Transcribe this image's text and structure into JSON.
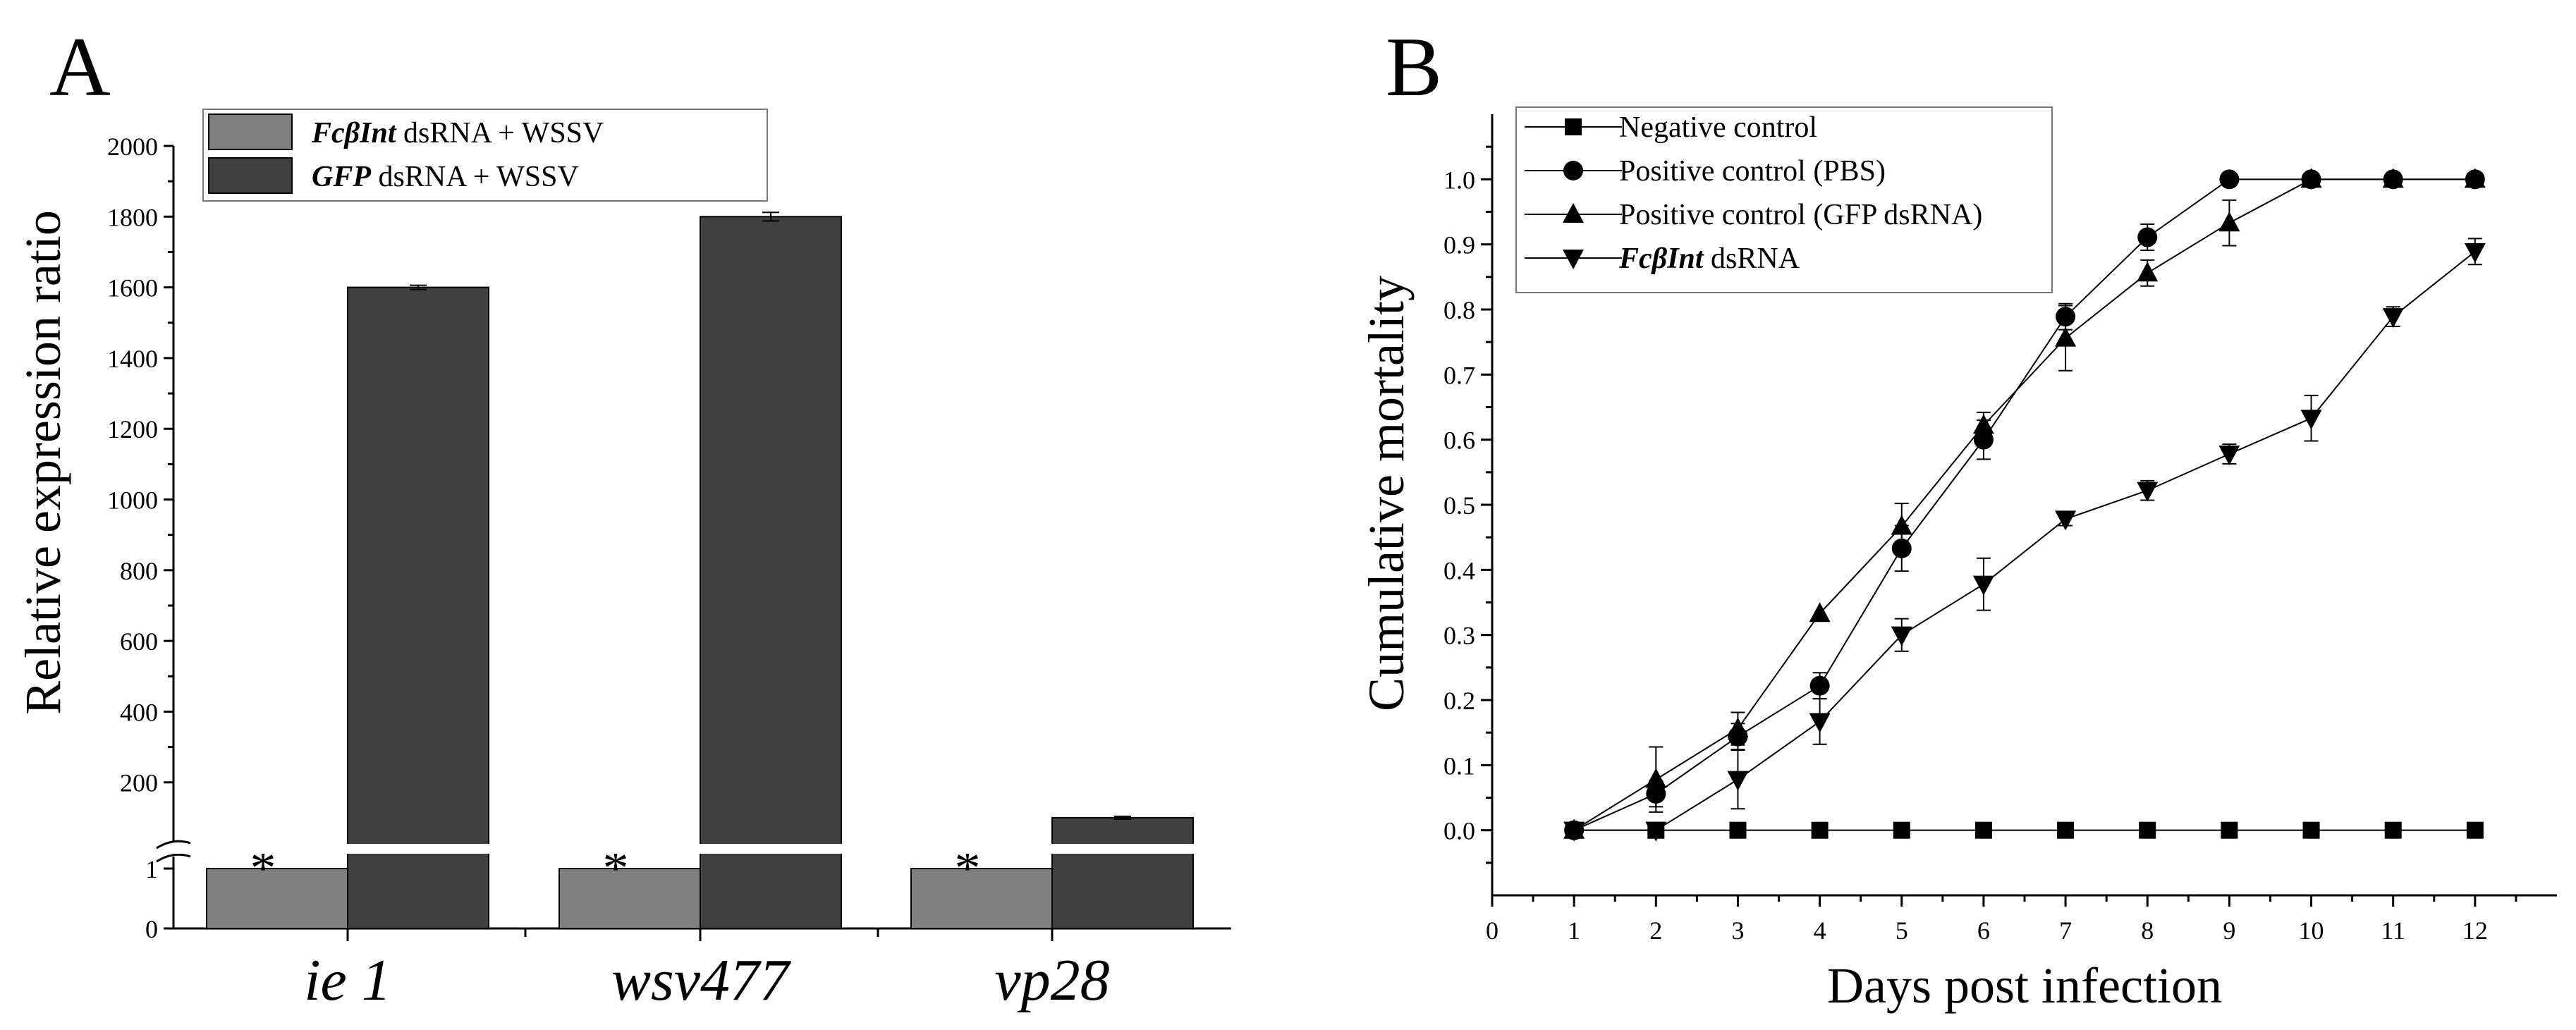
{
  "chart_data": [
    {
      "panel_label": "A",
      "type": "bar",
      "ylabel": "Relative expression ratio",
      "categories": [
        "ie 1",
        "wsv477",
        "vp28"
      ],
      "series": [
        {
          "name_gene": "FcβInt",
          "name_rest": "dsRNA + WSSV",
          "values": [
            1,
            1,
            1
          ],
          "errors": [
            0,
            0,
            0
          ],
          "color": "#808080"
        },
        {
          "name_gene": "GFP",
          "name_rest": "dsRNA + WSSV",
          "values": [
            1600,
            1800,
            100
          ],
          "errors": [
            6,
            12,
            4
          ],
          "color": "#404040"
        }
      ],
      "significance": [
        "*",
        "*",
        "*"
      ],
      "y_lower": {
        "ticks": [
          "0",
          "1"
        ],
        "range": [
          0,
          1.2
        ]
      },
      "y_upper": {
        "ticks": [
          "200",
          "400",
          "600",
          "800",
          "1000",
          "1200",
          "1400",
          "1600",
          "1800",
          "2000"
        ],
        "range": [
          30,
          2000
        ]
      },
      "legend_position": "top-left"
    },
    {
      "panel_label": "B",
      "type": "line",
      "xlabel": "Days post infection",
      "ylabel": "Cumulative mortality",
      "x": [
        1,
        2,
        3,
        4,
        5,
        6,
        7,
        8,
        9,
        10,
        11,
        12
      ],
      "xlim": [
        0,
        13
      ],
      "ylim": [
        -0.1,
        1.1
      ],
      "x_ticks": [
        "0",
        "1",
        "2",
        "3",
        "4",
        "5",
        "6",
        "7",
        "8",
        "9",
        "10",
        "11",
        "12"
      ],
      "y_ticks": [
        "0.0",
        "0.1",
        "0.2",
        "0.3",
        "0.4",
        "0.5",
        "0.6",
        "0.7",
        "0.8",
        "0.9",
        "1.0"
      ],
      "series": [
        {
          "name": "Negative control",
          "marker": "square",
          "values": [
            0,
            0,
            0,
            0,
            0,
            0,
            0,
            0,
            0,
            0,
            0,
            0
          ],
          "errors": [
            0,
            0,
            0,
            0,
            0,
            0,
            0,
            0,
            0,
            0,
            0,
            0
          ]
        },
        {
          "name": "Positive control (PBS)",
          "marker": "circle",
          "values": [
            0,
            0.056,
            0.144,
            0.222,
            0.433,
            0.6,
            0.789,
            0.911,
            1.0,
            1.0,
            1.0,
            1.0
          ],
          "errors": [
            0,
            0.02,
            0.02,
            0.02,
            0.035,
            0.03,
            0.02,
            0.02,
            0,
            0,
            0,
            0
          ]
        },
        {
          "name": "Positive control (GFP dsRNA)",
          "marker": "triangle-up",
          "values": [
            0,
            0.078,
            0.156,
            0.333,
            0.467,
            0.622,
            0.756,
            0.856,
            0.933,
            1.0,
            1.0,
            1.0
          ],
          "errors": [
            0,
            0.05,
            0.025,
            0,
            0.035,
            0.02,
            0.05,
            0.02,
            0.035,
            0,
            0,
            0
          ]
        },
        {
          "name_gene": "FcβInt",
          "name_rest": "dsRNA",
          "marker": "triangle-down",
          "values": [
            0,
            0,
            0.078,
            0.167,
            0.3,
            0.378,
            0.478,
            0.522,
            0.578,
            0.633,
            0.789,
            0.889
          ],
          "errors": [
            0,
            0,
            0.045,
            0.035,
            0.025,
            0.04,
            0.01,
            0.015,
            0.015,
            0.035,
            0.015,
            0.02
          ]
        }
      ],
      "legend_position": "top-left"
    }
  ]
}
